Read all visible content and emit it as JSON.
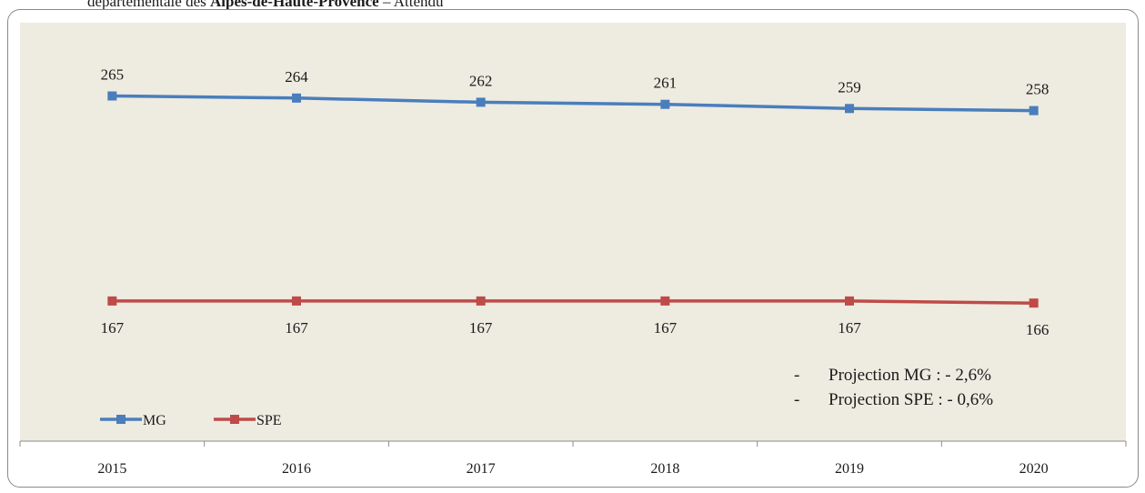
{
  "caption": {
    "prefix": "départementale des ",
    "bold": "Alpes-de-Haute-Provence",
    "suffix": " – Attendu"
  },
  "chart_data": {
    "type": "line",
    "x": [
      "2015",
      "2016",
      "2017",
      "2018",
      "2019",
      "2020"
    ],
    "series": [
      {
        "name": "MG",
        "values": [
          265,
          264,
          262,
          261,
          259,
          258
        ],
        "color": "#4a7ebb"
      },
      {
        "name": "SPE",
        "values": [
          167,
          167,
          167,
          167,
          167,
          166
        ],
        "color": "#be4b48"
      }
    ],
    "ylim": [
      100,
      300
    ],
    "plot_background": "#eeebe1",
    "grid": false,
    "legend": "bottom-left",
    "notes": [
      {
        "dash": "-",
        "text": "Projection MG : - 2,6%"
      },
      {
        "dash": "-",
        "text": "Projection SPE : - 0,6%"
      }
    ]
  }
}
